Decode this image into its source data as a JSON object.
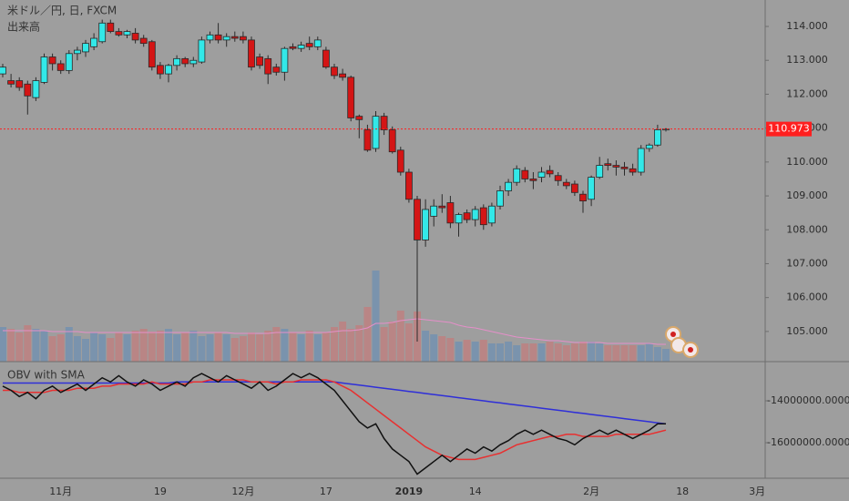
{
  "chart_data": {
    "type": "candlestick",
    "title": "米ドル／円, 日, FXCM",
    "volume_title": "出来高",
    "categories": [
      null,
      null,
      null,
      null,
      null,
      null,
      null,
      "11月",
      null,
      null,
      null,
      null,
      null,
      null,
      null,
      null,
      null,
      null,
      null,
      "19",
      null,
      null,
      null,
      null,
      null,
      null,
      null,
      null,
      null,
      "12月",
      null,
      null,
      null,
      null,
      null,
      null,
      null,
      null,
      null,
      "17",
      null,
      null,
      null,
      null,
      null,
      null,
      null,
      null,
      null,
      "2019",
      null,
      null,
      null,
      null,
      null,
      null,
      null,
      "14",
      null,
      null,
      null,
      null,
      null,
      null,
      null,
      null,
      null,
      null,
      null,
      null,
      null,
      "2月",
      null,
      null,
      null,
      null,
      null,
      null,
      null,
      null,
      null,
      null,
      "18",
      null,
      null,
      null,
      null,
      null,
      null,
      null,
      null,
      "3月"
    ],
    "open": [
      112.6,
      112.4,
      112.4,
      112.3,
      111.9,
      112.35,
      113.1,
      112.9,
      112.7,
      113.2,
      113.25,
      113.4,
      113.55,
      114.1,
      113.85,
      113.75,
      113.8,
      113.65,
      113.55,
      112.85,
      112.6,
      112.85,
      113.05,
      112.9,
      112.95,
      113.6,
      113.75,
      113.6,
      113.7,
      113.7,
      113.6,
      113.1,
      113.05,
      112.8,
      112.65,
      113.4,
      113.35,
      113.5,
      113.4,
      113.3,
      112.8,
      112.6,
      112.5,
      111.35,
      110.95,
      110.4,
      111.35,
      110.95,
      110.35,
      109.7,
      108.9,
      107.7,
      108.4,
      108.7,
      108.8,
      108.2,
      108.5,
      108.3,
      108.65,
      108.2,
      108.7,
      109.15,
      109.4,
      109.75,
      109.5,
      109.55,
      109.75,
      109.6,
      109.4,
      109.35,
      109.05,
      108.9,
      109.55,
      109.95,
      109.9,
      109.85,
      109.8,
      109.7,
      110.4,
      110.5,
      110.95,
      null,
      null,
      null,
      null,
      null,
      null,
      null,
      null,
      null,
      null,
      null
    ],
    "high": [
      112.9,
      112.6,
      112.5,
      112.4,
      112.5,
      113.2,
      113.2,
      113.0,
      113.3,
      113.4,
      113.6,
      113.8,
      114.2,
      114.2,
      113.95,
      113.9,
      113.95,
      113.75,
      113.6,
      112.95,
      112.9,
      113.15,
      113.1,
      113.1,
      113.7,
      113.85,
      114.1,
      113.8,
      113.85,
      113.85,
      113.7,
      113.2,
      113.15,
      112.9,
      113.4,
      113.5,
      113.55,
      113.7,
      113.7,
      113.4,
      112.9,
      112.75,
      112.55,
      111.4,
      111.1,
      111.5,
      111.45,
      111.05,
      110.45,
      109.8,
      109.0,
      108.9,
      108.9,
      109.05,
      109.0,
      108.5,
      108.6,
      108.7,
      108.75,
      108.8,
      109.3,
      109.5,
      109.9,
      109.85,
      109.7,
      109.85,
      109.9,
      109.7,
      109.5,
      109.45,
      109.15,
      109.6,
      110.15,
      110.1,
      110.05,
      110.0,
      109.95,
      110.5,
      110.55,
      111.1,
      111.0,
      null,
      null,
      null,
      null,
      null,
      null,
      null,
      null,
      null,
      null,
      null
    ],
    "low": [
      112.5,
      112.2,
      112.1,
      111.4,
      111.8,
      112.3,
      112.7,
      112.6,
      112.6,
      113.0,
      113.1,
      113.3,
      113.5,
      113.8,
      113.7,
      113.65,
      113.5,
      113.4,
      112.7,
      112.45,
      112.35,
      112.7,
      112.8,
      112.8,
      112.9,
      113.5,
      113.5,
      113.4,
      113.55,
      113.5,
      112.7,
      112.75,
      112.3,
      112.55,
      112.4,
      113.3,
      113.25,
      113.3,
      113.3,
      112.75,
      112.45,
      112.4,
      111.2,
      110.7,
      110.3,
      110.3,
      110.8,
      110.25,
      109.6,
      108.8,
      104.7,
      107.5,
      108.1,
      108.5,
      108.05,
      107.8,
      108.2,
      108.1,
      108.0,
      108.1,
      108.6,
      109.0,
      109.3,
      109.4,
      109.2,
      109.4,
      109.55,
      109.3,
      109.2,
      109.0,
      108.5,
      108.7,
      109.5,
      109.75,
      109.6,
      109.6,
      109.6,
      109.6,
      110.3,
      110.45,
      110.9,
      null,
      null,
      null,
      null,
      null,
      null,
      null,
      null,
      null,
      null,
      null
    ],
    "close": [
      112.8,
      112.3,
      112.2,
      111.95,
      112.4,
      113.1,
      112.9,
      112.7,
      113.2,
      113.3,
      113.5,
      113.65,
      114.1,
      113.85,
      113.75,
      113.85,
      113.6,
      113.5,
      112.8,
      112.6,
      112.85,
      113.05,
      112.9,
      113.0,
      113.6,
      113.75,
      113.6,
      113.7,
      113.65,
      113.6,
      112.8,
      112.85,
      112.6,
      112.65,
      113.35,
      113.35,
      113.45,
      113.4,
      113.6,
      112.8,
      112.55,
      112.5,
      111.3,
      111.25,
      110.35,
      111.35,
      110.95,
      110.3,
      109.7,
      108.9,
      107.7,
      108.6,
      108.7,
      108.65,
      108.2,
      108.45,
      108.3,
      108.6,
      108.15,
      108.7,
      109.15,
      109.4,
      109.8,
      109.5,
      109.45,
      109.7,
      109.65,
      109.45,
      109.3,
      109.1,
      108.85,
      109.55,
      109.9,
      109.9,
      109.85,
      109.8,
      109.7,
      110.4,
      110.5,
      110.95,
      110.973,
      null,
      null,
      null,
      null,
      null,
      null,
      null,
      null,
      null,
      null,
      null
    ],
    "volume": [
      38,
      36,
      32,
      40,
      36,
      34,
      28,
      30,
      38,
      28,
      25,
      32,
      30,
      26,
      32,
      30,
      34,
      36,
      33,
      34,
      36,
      30,
      32,
      34,
      28,
      30,
      32,
      30,
      26,
      28,
      32,
      30,
      34,
      38,
      36,
      32,
      30,
      34,
      30,
      32,
      38,
      44,
      36,
      40,
      60,
      100,
      38,
      44,
      56,
      42,
      55,
      34,
      30,
      28,
      26,
      22,
      24,
      22,
      24,
      20,
      20,
      22,
      18,
      20,
      20,
      20,
      22,
      20,
      18,
      20,
      22,
      22,
      20,
      18,
      18,
      18,
      18,
      18,
      20,
      16,
      14,
      null,
      null,
      null,
      null,
      null,
      null,
      null,
      null,
      null,
      null,
      null
    ],
    "volume_sma": [
      34,
      34,
      34,
      34,
      34,
      34,
      33,
      33,
      33,
      33,
      32,
      32,
      32,
      32,
      32,
      32,
      32,
      32,
      32,
      32,
      32,
      32,
      32,
      32,
      32,
      32,
      32,
      32,
      31,
      31,
      31,
      31,
      31,
      32,
      32,
      32,
      32,
      32,
      32,
      32,
      33,
      34,
      34,
      35,
      37,
      42,
      42,
      43,
      45,
      46,
      47,
      46,
      45,
      44,
      43,
      40,
      38,
      37,
      35,
      33,
      31,
      29,
      27,
      26,
      25,
      24,
      23,
      23,
      22,
      21,
      21,
      21,
      21,
      20,
      20,
      20,
      20,
      20,
      20,
      19,
      19,
      null,
      null,
      null,
      null,
      null,
      null,
      null,
      null,
      null,
      null,
      null
    ],
    "up_color": "#33e8e8",
    "down_color": "#d41515",
    "volume_up_color": "#7a93ad",
    "volume_down_color": "#b98585",
    "volume_sma_color": "#e58fc9",
    "ylim": [
      104.11,
      114.78
    ],
    "yticks": [
      {
        "value": 105,
        "label": "105.000"
      },
      {
        "value": 106,
        "label": "106.000"
      },
      {
        "value": 107,
        "label": "107.000"
      },
      {
        "value": 108,
        "label": "108.000"
      },
      {
        "value": 109,
        "label": "109.000"
      },
      {
        "value": 110,
        "label": "110.000"
      },
      {
        "value": 111,
        "label": "111.000"
      },
      {
        "value": 112,
        "label": "112.000"
      },
      {
        "value": 113,
        "label": "113.000"
      },
      {
        "value": 114,
        "label": "114.000"
      }
    ],
    "last_price": 110.973,
    "last_price_color": "#ff1f1f",
    "indicator": {
      "title": "OBV with SMA",
      "ylim": [
        -17696000,
        -12130000
      ],
      "yticks": [
        {
          "value": -16000000,
          "label": "-16000000.0000"
        },
        {
          "value": -14000000,
          "label": "-14000000.0000"
        }
      ],
      "series": [
        {
          "color": "#2f2fd8",
          "values": [
            -13150000.0,
            -13150000.0,
            -13150000.0,
            -13150000.0,
            -13150000.0,
            -13150000.0,
            -13150000.0,
            -13150000.0,
            -13150000.0,
            -13150000.0,
            -13150000.0,
            -13150000.0,
            -13150000.0,
            -13150000.0,
            -13150000.0,
            -13150000.0,
            -13150000.0,
            -13150000.0,
            -13150000.0,
            -13150000.0,
            -13150000.0,
            -13100000.0,
            -13100000.0,
            -13100000.0,
            -13100000.0,
            -13100000.0,
            -13100000.0,
            -13100000.0,
            -13100000.0,
            -13100000.0,
            -13100000.0,
            -13100000.0,
            -13100000.0,
            -13100000.0,
            -13100000.0,
            -13100000.0,
            -13100000.0,
            -13100000.0,
            -13100000.0,
            -13100000.0,
            -13100000.0,
            -13150000.0,
            -13200000.0,
            -13250000.0,
            -13300000.0,
            -13350000.0,
            -13400000.0,
            -13450000.0,
            -13500000.0,
            -13550000.0,
            -13600000.0,
            -13650000.0,
            -13700000.0,
            -13750000.0,
            -13800000.0,
            -13850000.0,
            -13900000.0,
            -13950000.0,
            -14000000.0,
            -14050000.0,
            -14100000.0,
            -14150000.0,
            -14200000.0,
            -14250000.0,
            -14300000.0,
            -14350000.0,
            -14400000.0,
            -14450000.0,
            -14500000.0,
            -14550000.0,
            -14600000.0,
            -14650000.0,
            -14700000.0,
            -14750000.0,
            -14800000.0,
            -14850000.0,
            -14900000.0,
            -14950000.0,
            -15000000.0,
            -15050000.0,
            -15100000.0,
            null,
            null,
            null,
            null,
            null,
            null,
            null,
            null,
            null,
            null,
            null
          ]
        },
        {
          "color": "#e83030",
          "values": [
            -13500000.0,
            -13500000.0,
            -13600000.0,
            -13600000.0,
            -13600000.0,
            -13600000.0,
            -13500000.0,
            -13500000.0,
            -13500000.0,
            -13400000.0,
            -13400000.0,
            -13400000.0,
            -13300000.0,
            -13300000.0,
            -13200000.0,
            -13200000.0,
            -13200000.0,
            -13200000.0,
            -13100000.0,
            -13200000.0,
            -13200000.0,
            -13200000.0,
            -13200000.0,
            -13100000.0,
            -13100000.0,
            -13000000.0,
            -13000000.0,
            -13000000.0,
            -13000000.0,
            -13000000.0,
            -13100000.0,
            -13100000.0,
            -13100000.0,
            -13200000.0,
            -13100000.0,
            -13100000.0,
            -13000000.0,
            -13000000.0,
            -13000000.0,
            -13000000.0,
            -13100000.0,
            -13300000.0,
            -13500000.0,
            -13800000.0,
            -14100000.0,
            -14400000.0,
            -14700000.0,
            -15000000.0,
            -15300000.0,
            -15600000.0,
            -15900000.0,
            -16200000.0,
            -16400000.0,
            -16600000.0,
            -16700000.0,
            -16800000.0,
            -16800000.0,
            -16800000.0,
            -16700000.0,
            -16600000.0,
            -16500000.0,
            -16300000.0,
            -16100000.0,
            -16000000.0,
            -15900000.0,
            -15800000.0,
            -15700000.0,
            -15700000.0,
            -15600000.0,
            -15600000.0,
            -15700000.0,
            -15700000.0,
            -15700000.0,
            -15700000.0,
            -15600000.0,
            -15600000.0,
            -15600000.0,
            -15600000.0,
            -15600000.0,
            -15500000.0,
            -15400000.0,
            null,
            null,
            null,
            null,
            null,
            null,
            null,
            null,
            null,
            null,
            null
          ]
        },
        {
          "color": "#111111",
          "values": [
            -13300000.0,
            -13500000.0,
            -13800000.0,
            -13600000.0,
            -13900000.0,
            -13500000.0,
            -13300000.0,
            -13600000.0,
            -13400000.0,
            -13200000.0,
            -13500000.0,
            -13200000.0,
            -12900000.0,
            -13100000.0,
            -12800000.0,
            -13100000.0,
            -13300000.0,
            -13000000.0,
            -13200000.0,
            -13500000.0,
            -13300000.0,
            -13100000.0,
            -13300000.0,
            -12900000.0,
            -12700000.0,
            -12900000.0,
            -13100000.0,
            -12800000.0,
            -13000000.0,
            -13200000.0,
            -13400000.0,
            -13100000.0,
            -13500000.0,
            -13300000.0,
            -13000000.0,
            -12700000.0,
            -12900000.0,
            -12700000.0,
            -12900000.0,
            -13200000.0,
            -13500000.0,
            -14000000.0,
            -14500000.0,
            -15000000.0,
            -15300000.0,
            -15100000.0,
            -15800000.0,
            -16300000.0,
            -16600000.0,
            -16900000.0,
            -17500000.0,
            -17200000.0,
            -16900000.0,
            -16600000.0,
            -16900000.0,
            -16600000.0,
            -16300000.0,
            -16500000.0,
            -16200000.0,
            -16400000.0,
            -16100000.0,
            -15900000.0,
            -15600000.0,
            -15400000.0,
            -15600000.0,
            -15400000.0,
            -15600000.0,
            -15800000.0,
            -15900000.0,
            -16100000.0,
            -15800000.0,
            -15600000.0,
            -15400000.0,
            -15600000.0,
            -15400000.0,
            -15600000.0,
            -15800000.0,
            -15600000.0,
            -15400000.0,
            -15100000.0,
            -15100000.0,
            null,
            null,
            null,
            null,
            null,
            null,
            null,
            null,
            null,
            null,
            null
          ]
        }
      ]
    }
  }
}
